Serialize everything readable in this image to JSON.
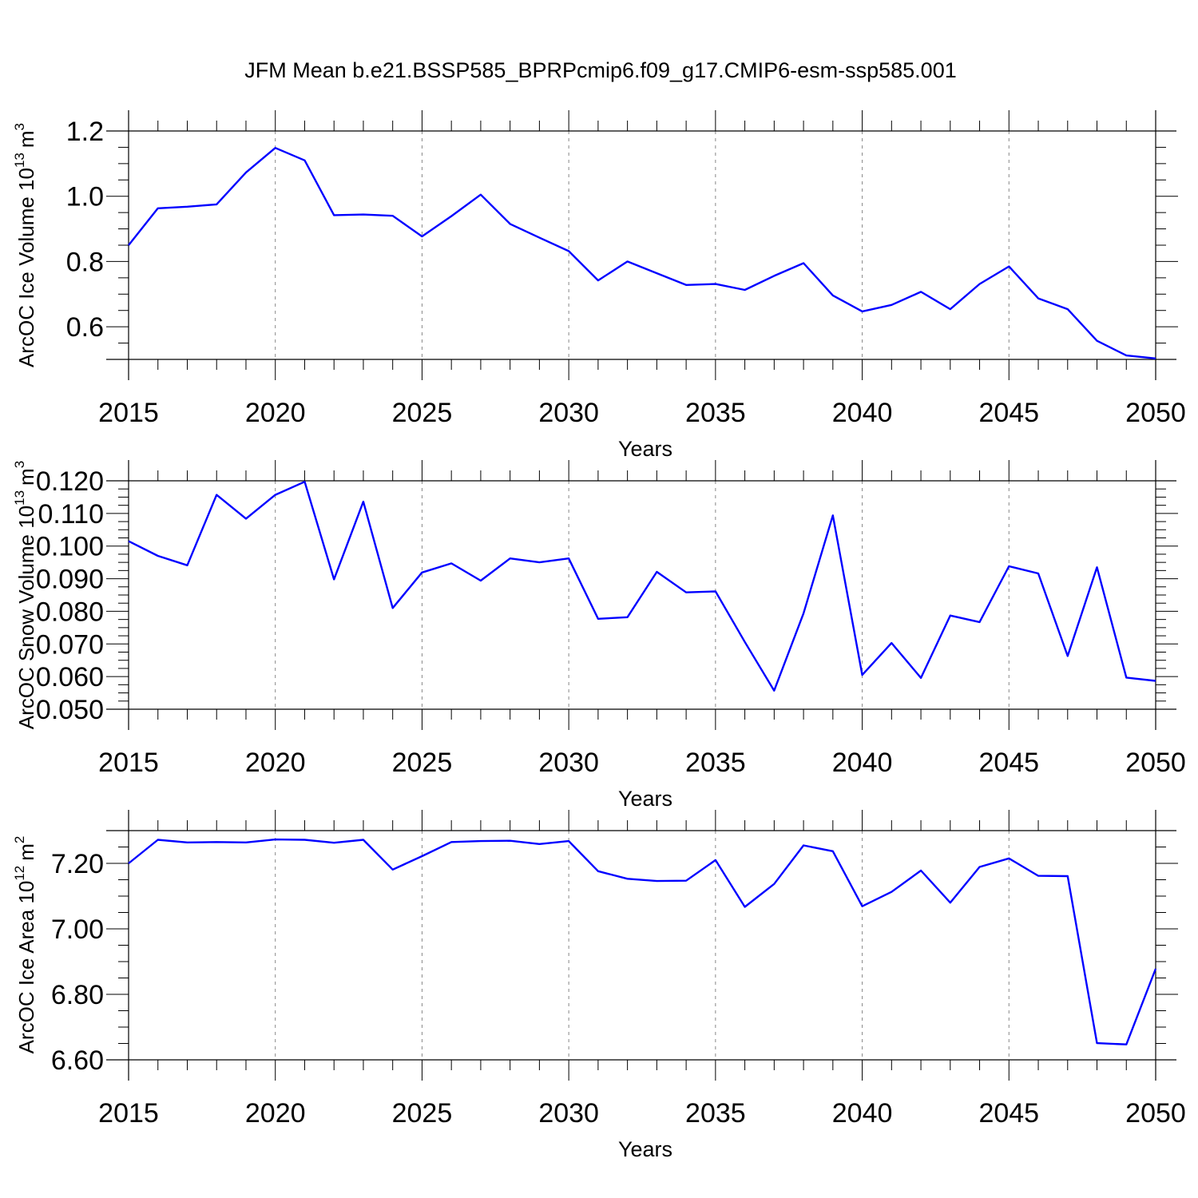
{
  "title": "JFM Mean b.e21.BSSP585_BPRPcmip6.f09_g17.CMIP6-esm-ssp585.001",
  "chart_data": [
    {
      "type": "line",
      "title": "JFM Mean b.e21.BSSP585_BPRPcmip6.f09_g17.CMIP6-esm-ssp585.001",
      "xlabel": "Years",
      "ylabel": "ArcOC Ice Volume 10",
      "ylabel_exp": "13",
      "ylabel_unit": "m",
      "ylabel_unit_exp": "3",
      "xlim": [
        2015,
        2050
      ],
      "ylim": [
        0.5,
        1.2
      ],
      "xticks": [
        "2015",
        "2020",
        "2025",
        "2030",
        "2035",
        "2040",
        "2045",
        "2050"
      ],
      "yticks": [
        "0.6",
        "0.8",
        "1.0",
        "1.2"
      ],
      "grid": "vertical dashed at major x ticks",
      "color": "#0000ff",
      "x": [
        2015,
        2016,
        2017,
        2018,
        2019,
        2020,
        2021,
        2022,
        2023,
        2024,
        2025,
        2026,
        2027,
        2028,
        2029,
        2030,
        2031,
        2032,
        2033,
        2034,
        2035,
        2036,
        2037,
        2038,
        2039,
        2040,
        2041,
        2042,
        2043,
        2044,
        2045,
        2046,
        2047,
        2048,
        2049,
        2050
      ],
      "y": [
        0.85,
        0.963,
        0.968,
        0.975,
        1.073,
        1.148,
        1.11,
        0.942,
        0.944,
        0.94,
        0.877,
        0.939,
        1.005,
        0.915,
        0.873,
        0.832,
        0.742,
        0.8,
        0.764,
        0.728,
        0.731,
        0.713,
        0.756,
        0.795,
        0.696,
        0.647,
        0.667,
        0.707,
        0.654,
        0.731,
        0.785,
        0.687,
        0.654,
        0.557,
        0.512,
        0.503
      ]
    },
    {
      "type": "line",
      "xlabel": "Years",
      "ylabel": "ArcOC Snow Volume 10",
      "ylabel_exp": "13",
      "ylabel_unit": "m",
      "ylabel_unit_exp": "3",
      "xlim": [
        2015,
        2050
      ],
      "ylim": [
        0.05,
        0.12
      ],
      "xticks": [
        "2015",
        "2020",
        "2025",
        "2030",
        "2035",
        "2040",
        "2045",
        "2050"
      ],
      "yticks": [
        "0.050",
        "0.060",
        "0.070",
        "0.080",
        "0.090",
        "0.100",
        "0.110",
        "0.120"
      ],
      "grid": "vertical dashed at major x ticks",
      "color": "#0000ff",
      "x": [
        2015,
        2016,
        2017,
        2018,
        2019,
        2020,
        2021,
        2022,
        2023,
        2024,
        2025,
        2026,
        2027,
        2028,
        2029,
        2030,
        2031,
        2032,
        2033,
        2034,
        2035,
        2036,
        2037,
        2038,
        2039,
        2040,
        2041,
        2042,
        2043,
        2044,
        2045,
        2046,
        2047,
        2048,
        2049,
        2050
      ],
      "y": [
        0.1015,
        0.097,
        0.0941,
        0.1157,
        0.1084,
        0.1157,
        0.1197,
        0.0898,
        0.1136,
        0.081,
        0.0919,
        0.0947,
        0.0894,
        0.0962,
        0.095,
        0.0962,
        0.0777,
        0.0782,
        0.0921,
        0.0858,
        0.0861,
        0.0706,
        0.0557,
        0.0794,
        0.1094,
        0.0605,
        0.0703,
        0.0596,
        0.0787,
        0.0767,
        0.0938,
        0.0916,
        0.0663,
        0.0935,
        0.0597,
        0.0587
      ]
    },
    {
      "type": "line",
      "xlabel": "Years",
      "ylabel": "ArcOC Ice Area 10",
      "ylabel_exp": "12",
      "ylabel_unit": "m",
      "ylabel_unit_exp": "2",
      "xlim": [
        2015,
        2050
      ],
      "ylim": [
        6.6,
        7.3
      ],
      "xticks": [
        "2015",
        "2020",
        "2025",
        "2030",
        "2035",
        "2040",
        "2045",
        "2050"
      ],
      "yticks": [
        "6.60",
        "6.80",
        "7.00",
        "7.20"
      ],
      "grid": "vertical dashed at major x ticks",
      "color": "#0000ff",
      "x": [
        2015,
        2016,
        2017,
        2018,
        2019,
        2020,
        2021,
        2022,
        2023,
        2024,
        2025,
        2026,
        2027,
        2028,
        2029,
        2030,
        2031,
        2032,
        2033,
        2034,
        2035,
        2036,
        2037,
        2038,
        2039,
        2040,
        2041,
        2042,
        2043,
        2044,
        2045,
        2046,
        2047,
        2048,
        2049,
        2050
      ],
      "y": [
        7.2,
        7.272,
        7.264,
        7.265,
        7.264,
        7.273,
        7.272,
        7.263,
        7.272,
        7.181,
        7.222,
        7.265,
        7.268,
        7.269,
        7.259,
        7.268,
        7.176,
        7.153,
        7.146,
        7.147,
        7.21,
        7.067,
        7.137,
        7.255,
        7.237,
        7.069,
        7.113,
        7.178,
        7.08,
        7.189,
        7.215,
        7.162,
        7.161,
        6.651,
        6.647,
        6.878
      ]
    }
  ]
}
